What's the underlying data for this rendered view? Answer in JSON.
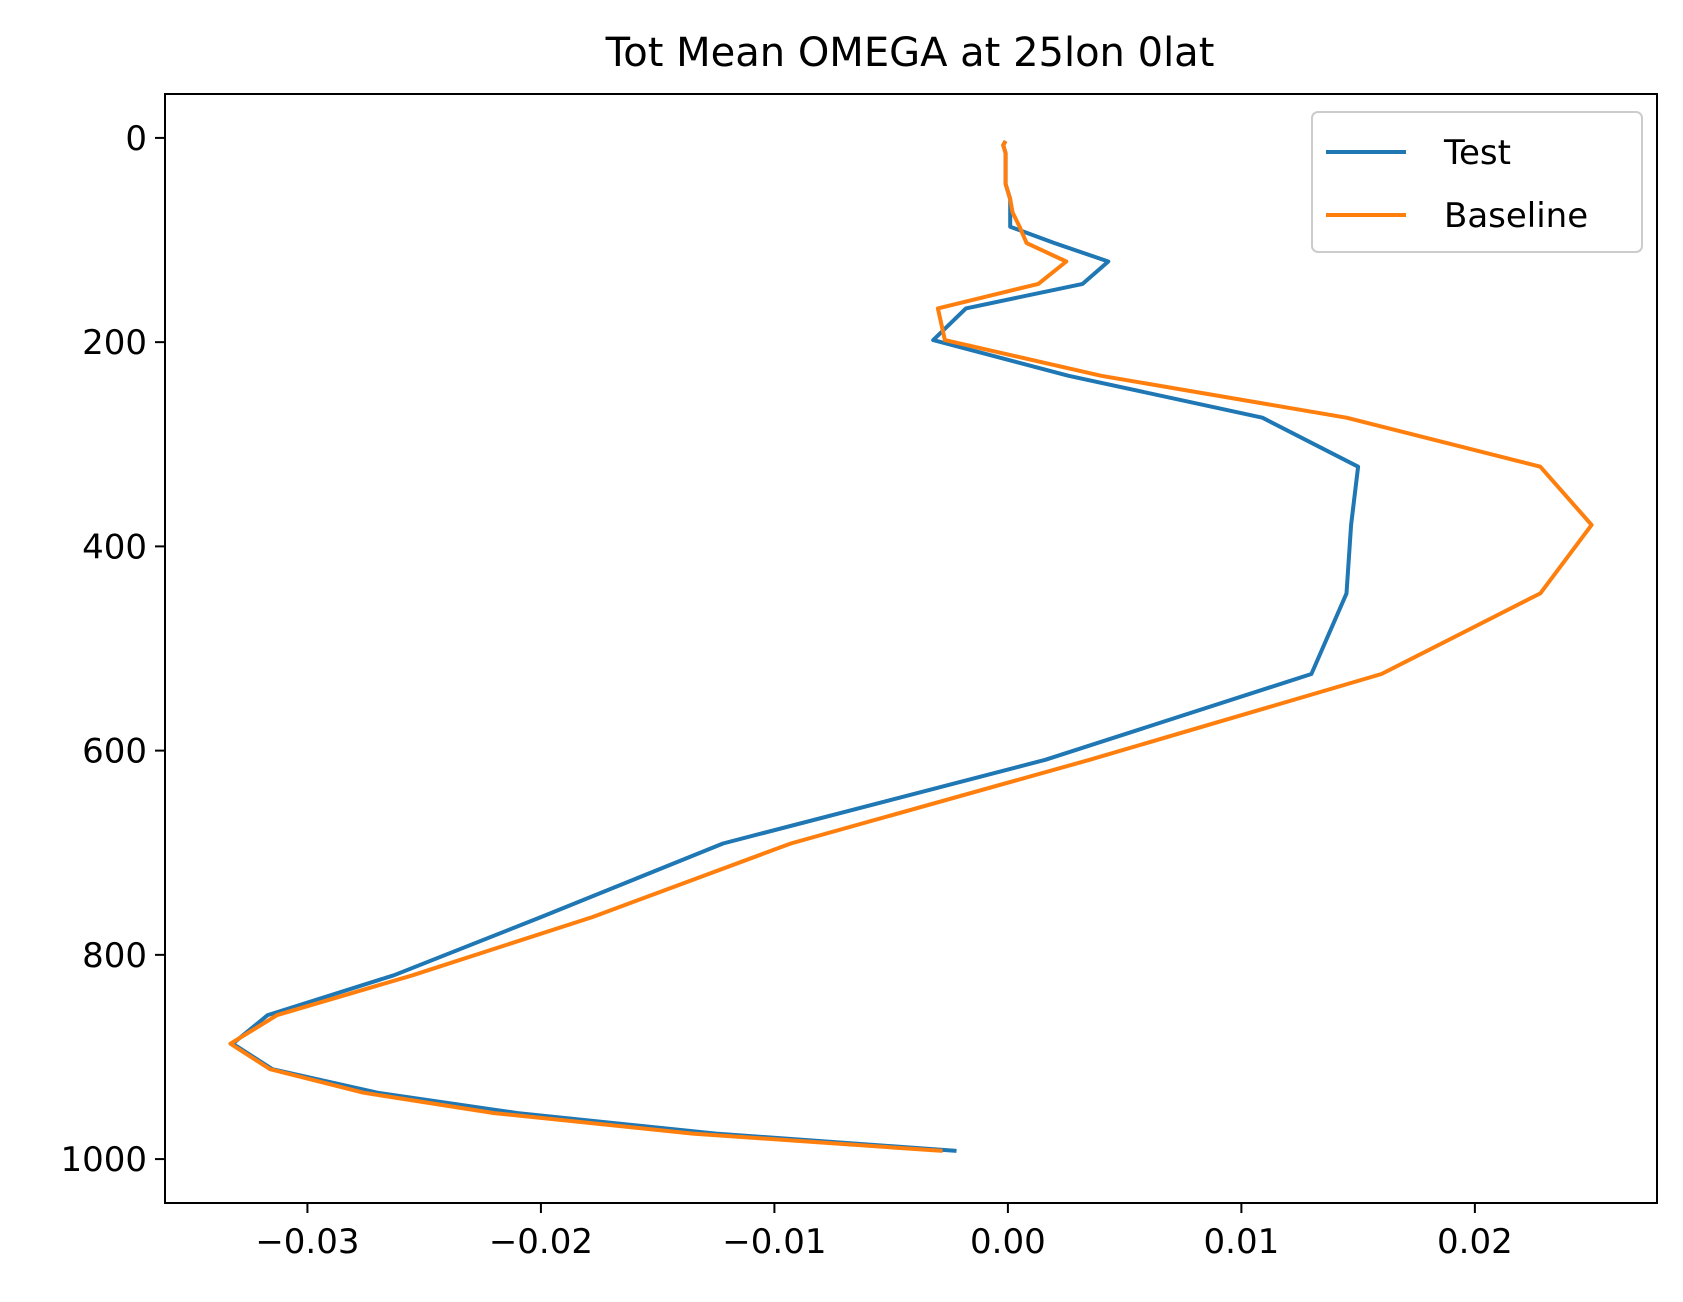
{
  "chart_data": {
    "type": "line",
    "title": "Tot Mean OMEGA at 25lon 0lat",
    "xlabel": "",
    "ylabel": "",
    "xlim": [
      -0.0361,
      0.0278
    ],
    "ylim": [
      1043,
      -43
    ],
    "y_inverted": true,
    "grid": false,
    "legend_position": "top-right",
    "x_ticks": [
      {
        "value": -0.03,
        "label": "−0.03"
      },
      {
        "value": -0.02,
        "label": "−0.02"
      },
      {
        "value": -0.01,
        "label": "−0.01"
      },
      {
        "value": 0.0,
        "label": "0.00"
      },
      {
        "value": 0.01,
        "label": "0.01"
      },
      {
        "value": 0.02,
        "label": "0.02"
      }
    ],
    "y_ticks": [
      {
        "value": 0,
        "label": "0"
      },
      {
        "value": 200,
        "label": "200"
      },
      {
        "value": 400,
        "label": "400"
      },
      {
        "value": 600,
        "label": "600"
      },
      {
        "value": 800,
        "label": "800"
      },
      {
        "value": 1000,
        "label": "1000"
      }
    ],
    "series": [
      {
        "name": "Test",
        "color": "#1f77b4",
        "points": [
          [
            -0.0001,
            3
          ],
          [
            -0.0002,
            7
          ],
          [
            -0.0001,
            15
          ],
          [
            -0.0001,
            25
          ],
          [
            -0.0001,
            35
          ],
          [
            -0.0001,
            45
          ],
          [
            0.0001,
            60
          ],
          [
            0.0001,
            73
          ],
          [
            0.0001,
            87
          ],
          [
            0.002,
            103
          ],
          [
            0.0043,
            121
          ],
          [
            0.0032,
            143
          ],
          [
            -0.0018,
            167
          ],
          [
            -0.0032,
            198
          ],
          [
            0.0026,
            233
          ],
          [
            0.0109,
            274
          ],
          [
            0.015,
            322
          ],
          [
            0.0147,
            379
          ],
          [
            0.0145,
            446
          ],
          [
            0.013,
            525
          ],
          [
            0.0016,
            609
          ],
          [
            -0.0122,
            691
          ],
          [
            -0.02,
            763
          ],
          [
            -0.0263,
            820
          ],
          [
            -0.0317,
            859
          ],
          [
            -0.0332,
            887
          ],
          [
            -0.0315,
            912
          ],
          [
            -0.027,
            935
          ],
          [
            -0.021,
            955
          ],
          [
            -0.0125,
            975
          ],
          [
            -0.0022,
            992
          ]
        ]
      },
      {
        "name": "Baseline",
        "color": "#ff7f0e",
        "points": [
          [
            -0.0001,
            3
          ],
          [
            -0.0002,
            7
          ],
          [
            -0.0001,
            15
          ],
          [
            -0.0001,
            25
          ],
          [
            -0.0001,
            35
          ],
          [
            -0.0001,
            45
          ],
          [
            0.0001,
            60
          ],
          [
            0.0002,
            73
          ],
          [
            0.0005,
            87
          ],
          [
            0.0008,
            103
          ],
          [
            0.0025,
            121
          ],
          [
            0.0013,
            143
          ],
          [
            -0.003,
            167
          ],
          [
            -0.0027,
            198
          ],
          [
            0.004,
            233
          ],
          [
            0.0145,
            274
          ],
          [
            0.0228,
            322
          ],
          [
            0.025,
            379
          ],
          [
            0.0228,
            446
          ],
          [
            0.016,
            525
          ],
          [
            0.0035,
            609
          ],
          [
            -0.0093,
            691
          ],
          [
            -0.0178,
            763
          ],
          [
            -0.0255,
            820
          ],
          [
            -0.0313,
            859
          ],
          [
            -0.0333,
            887
          ],
          [
            -0.0316,
            912
          ],
          [
            -0.0276,
            935
          ],
          [
            -0.022,
            955
          ],
          [
            -0.0135,
            975
          ],
          [
            -0.0028,
            992
          ]
        ]
      }
    ]
  }
}
